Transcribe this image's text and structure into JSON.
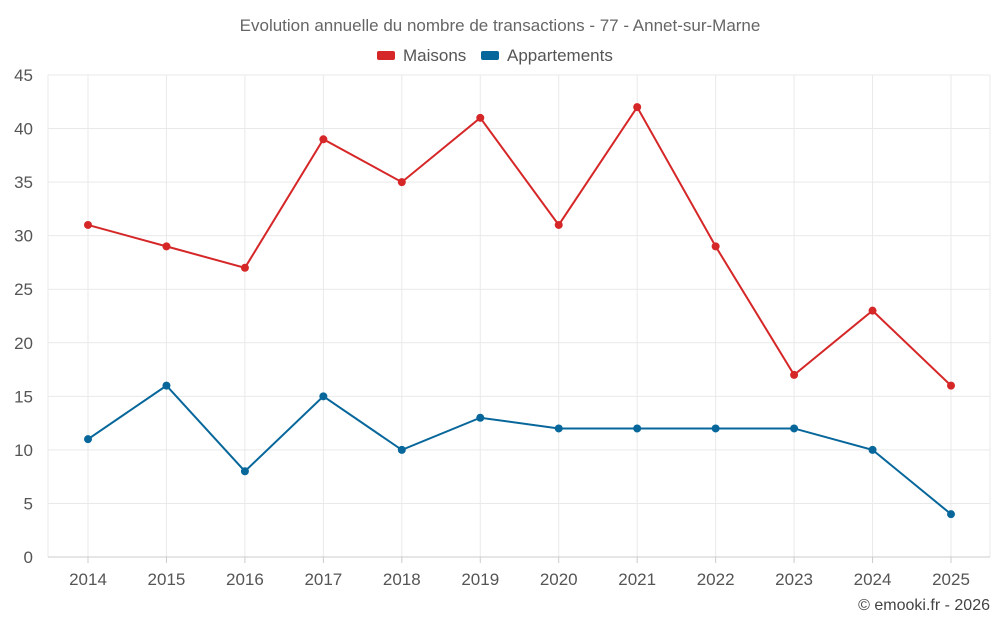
{
  "chart_data": {
    "type": "line",
    "title": "Evolution annuelle du nombre de transactions - 77 - Annet-sur-Marne",
    "categories": [
      "2014",
      "2015",
      "2016",
      "2017",
      "2018",
      "2019",
      "2020",
      "2021",
      "2022",
      "2023",
      "2024",
      "2025"
    ],
    "series": [
      {
        "name": "Maisons",
        "color": "#d62728",
        "values": [
          31,
          29,
          27,
          39,
          35,
          41,
          31,
          42,
          29,
          17,
          23,
          16
        ]
      },
      {
        "name": "Appartements",
        "color": "#07679b",
        "values": [
          11,
          16,
          8,
          15,
          10,
          13,
          12,
          12,
          12,
          12,
          10,
          4
        ]
      }
    ],
    "ylim": [
      0,
      45
    ],
    "yticks": [
      "0",
      "5",
      "10",
      "15",
      "20",
      "25",
      "30",
      "35",
      "40",
      "45"
    ],
    "xlabel": "",
    "ylabel": "",
    "grid": true,
    "legend_position": "top-center"
  },
  "footer": {
    "credit": "© emooki.fr - 2026"
  }
}
